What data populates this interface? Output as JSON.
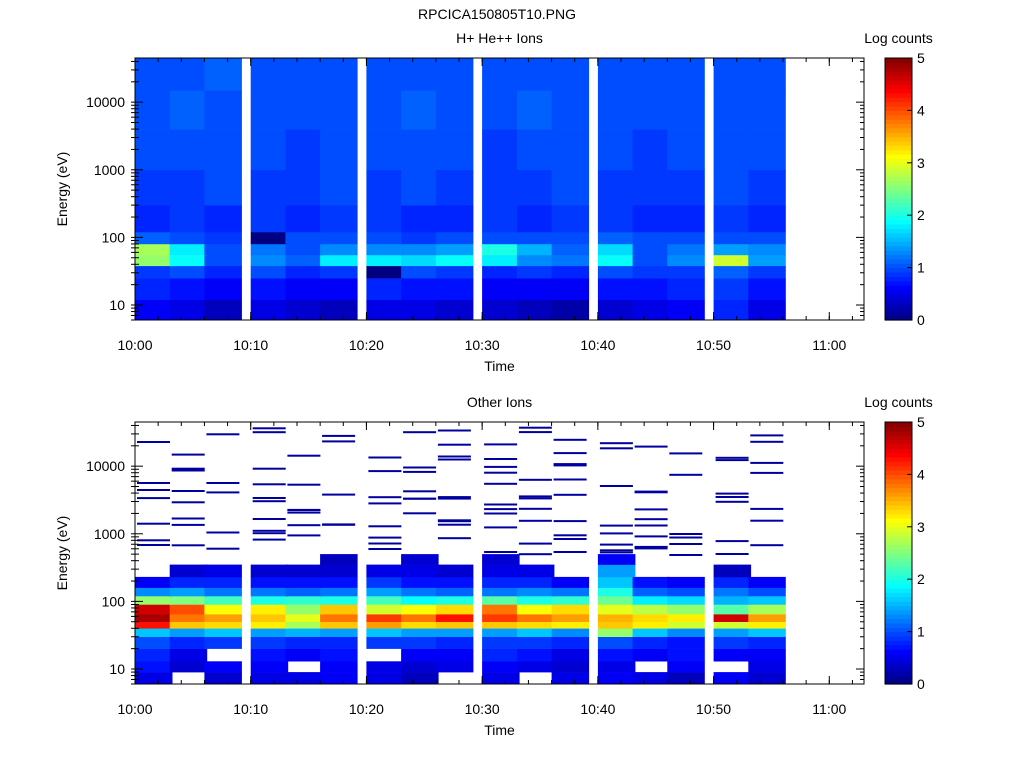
{
  "figure_title": "RPCICA150805T10.PNG",
  "chart_data": [
    {
      "type": "heatmap",
      "title": "H+ He++ Ions",
      "xlabel": "Time",
      "ylabel": "Energy (eV)",
      "colorbar_label": "Log counts",
      "yscale": "log",
      "ylim": [
        6,
        45000
      ],
      "xlim": [
        "10:00",
        "11:03"
      ],
      "x_ticks": [
        "10:00",
        "10:10",
        "10:20",
        "10:30",
        "10:40",
        "10:50",
        "11:00"
      ],
      "y_ticks": [
        "10",
        "100",
        "1000",
        "10000"
      ],
      "colorbar_ticks": [
        "0",
        "1",
        "2",
        "3",
        "4",
        "5"
      ],
      "colorbar_range": [
        0,
        5
      ],
      "time_columns": [
        "10:00",
        "10:03",
        "10:06",
        "10:10",
        "10:13",
        "10:16",
        "10:20",
        "10:23",
        "10:26",
        "10:30",
        "10:33",
        "10:36",
        "10:40",
        "10:43",
        "10:46",
        "10:50",
        "10:53"
      ],
      "energy_bands": [
        {
          "e_low": 6,
          "e_high": 12,
          "values": [
            0.6,
            0.5,
            0.3,
            0.5,
            0.4,
            0.3,
            0.5,
            0.5,
            0.4,
            0.4,
            0.3,
            0.2,
            0.4,
            0.5,
            0.6,
            0.8,
            0.5
          ]
        },
        {
          "e_low": 12,
          "e_high": 25,
          "values": [
            0.8,
            0.7,
            0.6,
            0.7,
            0.6,
            0.6,
            0.8,
            0.7,
            0.7,
            0.6,
            0.6,
            0.6,
            0.7,
            0.7,
            0.8,
            0.9,
            0.7
          ]
        },
        {
          "e_low": 25,
          "e_high": 38,
          "values": [
            0.9,
            1.0,
            0.8,
            1.0,
            0.8,
            0.9,
            0.0,
            1.0,
            0.9,
            0.8,
            0.9,
            0.8,
            1.0,
            0.9,
            0.9,
            1.1,
            0.9
          ]
        },
        {
          "e_low": 38,
          "e_high": 55,
          "values": [
            2.6,
            1.9,
            1.0,
            1.3,
            1.1,
            1.8,
            1.8,
            1.7,
            1.9,
            1.8,
            1.3,
            1.2,
            1.9,
            1.0,
            1.3,
            2.9,
            1.4
          ]
        },
        {
          "e_low": 55,
          "e_high": 80,
          "values": [
            2.7,
            1.8,
            1.0,
            1.2,
            1.0,
            1.3,
            1.3,
            1.3,
            1.4,
            2.0,
            1.5,
            1.1,
            1.7,
            1.0,
            1.2,
            1.4,
            1.3
          ]
        },
        {
          "e_low": 80,
          "e_high": 120,
          "values": [
            1.1,
            1.0,
            0.9,
            0.0,
            1.0,
            1.0,
            1.0,
            0.9,
            1.0,
            1.0,
            1.0,
            1.0,
            1.1,
            1.0,
            1.0,
            1.0,
            1.0
          ]
        },
        {
          "e_low": 120,
          "e_high": 300,
          "values": [
            0.8,
            0.9,
            0.8,
            0.9,
            0.8,
            0.9,
            0.9,
            0.8,
            0.8,
            0.9,
            0.8,
            0.9,
            0.9,
            0.8,
            0.8,
            0.9,
            0.8
          ]
        },
        {
          "e_low": 300,
          "e_high": 1000,
          "values": [
            0.9,
            0.9,
            1.0,
            0.9,
            0.9,
            1.0,
            0.9,
            1.0,
            0.9,
            0.9,
            0.9,
            1.0,
            0.9,
            0.9,
            0.9,
            1.0,
            0.9
          ]
        },
        {
          "e_low": 1000,
          "e_high": 4000,
          "values": [
            1.0,
            1.0,
            1.0,
            1.0,
            0.9,
            1.0,
            1.0,
            1.0,
            1.0,
            0.9,
            1.0,
            1.0,
            1.0,
            0.9,
            1.0,
            1.0,
            1.0
          ]
        },
        {
          "e_low": 4000,
          "e_high": 15000,
          "values": [
            1.0,
            1.1,
            1.0,
            1.0,
            1.0,
            1.0,
            1.0,
            1.1,
            1.0,
            1.0,
            1.1,
            1.0,
            1.0,
            1.0,
            1.0,
            1.0,
            1.0
          ]
        },
        {
          "e_low": 15000,
          "e_high": 45000,
          "values": [
            1.0,
            1.0,
            1.1,
            1.0,
            1.0,
            1.0,
            1.0,
            1.0,
            1.0,
            1.0,
            1.0,
            1.0,
            1.0,
            1.0,
            1.0,
            1.0,
            1.0
          ]
        }
      ]
    },
    {
      "type": "heatmap",
      "title": "Other Ions",
      "xlabel": "Time",
      "ylabel": "Energy (eV)",
      "colorbar_label": "Log counts",
      "yscale": "log",
      "ylim": [
        6,
        45000
      ],
      "xlim": [
        "10:00",
        "11:03"
      ],
      "x_ticks": [
        "10:00",
        "10:10",
        "10:20",
        "10:30",
        "10:40",
        "10:50",
        "11:00"
      ],
      "y_ticks": [
        "10",
        "100",
        "1000",
        "10000"
      ],
      "colorbar_ticks": [
        "0",
        "1",
        "2",
        "3",
        "4",
        "5"
      ],
      "colorbar_range": [
        0,
        5
      ],
      "time_columns": [
        "10:00",
        "10:03",
        "10:06",
        "10:10",
        "10:13",
        "10:16",
        "10:20",
        "10:23",
        "10:26",
        "10:30",
        "10:33",
        "10:36",
        "10:40",
        "10:43",
        "10:46",
        "10:50",
        "10:53"
      ],
      "energy_bands": [
        {
          "e_low": 6,
          "e_high": 9,
          "values": [
            0.5,
            null,
            0.4,
            0.5,
            0.5,
            0.6,
            0.5,
            0.3,
            null,
            0.5,
            null,
            0.5,
            0.6,
            0.5,
            0.3,
            0.6,
            0.4
          ]
        },
        {
          "e_low": 9,
          "e_high": 13,
          "values": [
            0.7,
            0.4,
            0.6,
            0.6,
            null,
            0.6,
            0.5,
            0.4,
            0.5,
            0.6,
            0.5,
            0.4,
            0.5,
            null,
            0.6,
            null,
            0.5
          ]
        },
        {
          "e_low": 13,
          "e_high": 20,
          "values": [
            0.8,
            0.5,
            null,
            0.7,
            0.6,
            0.7,
            null,
            0.6,
            0.6,
            0.8,
            0.7,
            0.5,
            0.7,
            0.6,
            0.7,
            0.6,
            0.6
          ]
        },
        {
          "e_low": 20,
          "e_high": 30,
          "values": [
            1.0,
            0.8,
            0.9,
            0.9,
            0.8,
            0.8,
            0.9,
            0.9,
            0.8,
            0.9,
            0.9,
            0.8,
            1.0,
            0.8,
            0.7,
            0.9,
            0.8
          ]
        },
        {
          "e_low": 30,
          "e_high": 40,
          "values": [
            1.6,
            1.4,
            1.6,
            1.4,
            1.5,
            1.4,
            1.6,
            1.4,
            1.4,
            1.4,
            1.6,
            1.3,
            2.6,
            1.6,
            1.3,
            1.4,
            1.6
          ]
        },
        {
          "e_low": 40,
          "e_high": 50,
          "values": [
            4.3,
            3.4,
            3.3,
            3.2,
            2.7,
            3.4,
            3.6,
            3.3,
            3.4,
            3.4,
            3.3,
            3.2,
            3.4,
            3.2,
            2.9,
            2.9,
            3.2
          ]
        },
        {
          "e_low": 50,
          "e_high": 65,
          "values": [
            4.8,
            3.8,
            3.6,
            3.4,
            3.0,
            3.8,
            4.1,
            3.8,
            4.3,
            4.1,
            3.8,
            3.6,
            3.5,
            3.3,
            3.2,
            4.6,
            3.6
          ]
        },
        {
          "e_low": 65,
          "e_high": 90,
          "values": [
            4.6,
            4.0,
            3.1,
            3.2,
            2.6,
            3.4,
            2.9,
            3.1,
            3.3,
            3.8,
            3.1,
            3.3,
            3.0,
            2.8,
            2.6,
            2.3,
            2.7
          ]
        },
        {
          "e_low": 90,
          "e_high": 120,
          "values": [
            2.6,
            2.5,
            2.2,
            2.0,
            2.1,
            2.0,
            2.2,
            1.9,
            2.0,
            2.3,
            2.0,
            2.1,
            2.4,
            1.8,
            1.7,
            1.5,
            1.6
          ]
        },
        {
          "e_low": 120,
          "e_high": 160,
          "values": [
            1.3,
            1.4,
            1.2,
            1.2,
            1.1,
            1.2,
            1.4,
            1.2,
            1.1,
            1.2,
            1.3,
            1.2,
            2.0,
            1.1,
            1.0,
            1.2,
            1.0
          ]
        },
        {
          "e_low": 160,
          "e_high": 230,
          "values": [
            0.6,
            0.8,
            0.8,
            0.7,
            0.7,
            0.7,
            0.9,
            0.7,
            0.7,
            0.8,
            0.8,
            0.6,
            1.6,
            0.7,
            0.6,
            0.8,
            0.6
          ]
        },
        {
          "e_low": 230,
          "e_high": 350,
          "values": [
            null,
            0.4,
            0.5,
            0.4,
            0.4,
            0.4,
            0.5,
            0.5,
            0.4,
            0.5,
            0.5,
            null,
            1.4,
            null,
            null,
            0.3,
            null
          ]
        },
        {
          "e_low": 350,
          "e_high": 500,
          "values": [
            null,
            null,
            null,
            null,
            null,
            0.3,
            null,
            0.4,
            null,
            0.4,
            null,
            null,
            0.6,
            null,
            null,
            null,
            null
          ]
        }
      ],
      "sparse_traces": "scattered single-count (log count ~0) horizontal traces between 500 eV and 40000 eV"
    }
  ]
}
